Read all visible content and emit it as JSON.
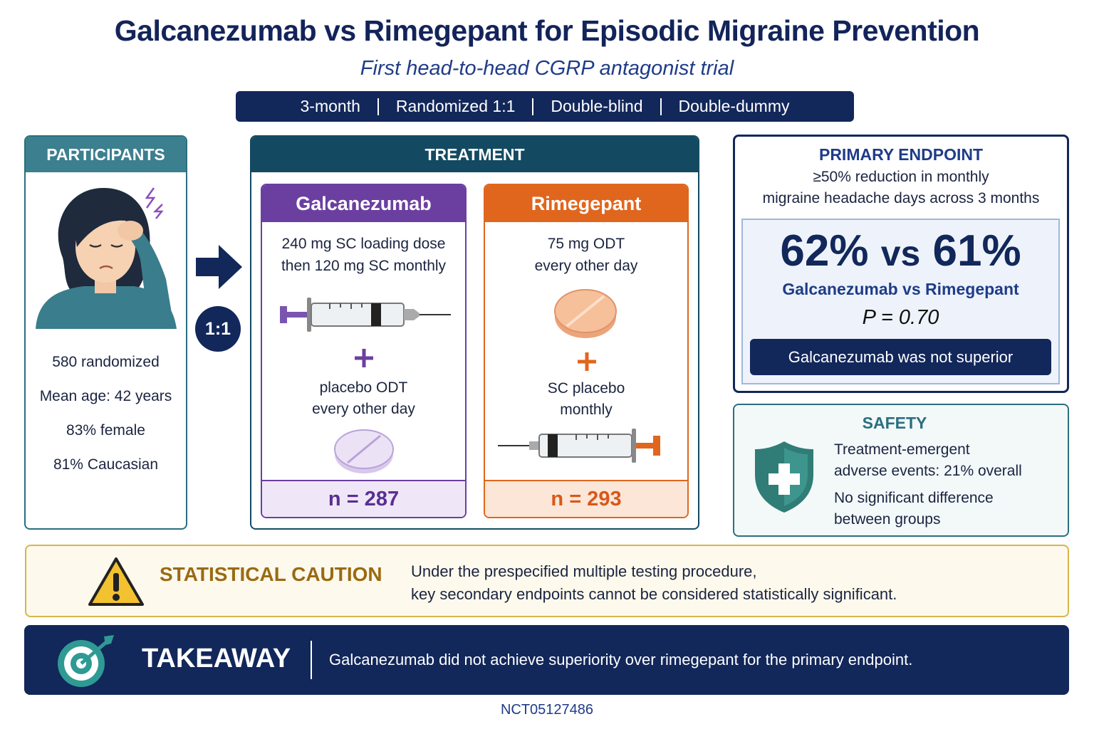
{
  "header": {
    "title": "Galcanezumab vs Rimegepant for Episodic Migraine Prevention",
    "subtitle": "First head-to-head CGRP antagonist trial",
    "design": [
      "3-month",
      "Randomized 1:1",
      "Double-blind",
      "Double-dummy"
    ]
  },
  "participants": {
    "heading": "PARTICIPANTS",
    "items": [
      "580 randomized",
      "Mean age: 42 years",
      "83% female",
      "81% Caucasian"
    ]
  },
  "ratio": "1:1",
  "treatment": {
    "heading": "TREATMENT",
    "arms": [
      {
        "name": "Galcanezumab",
        "dose": [
          "240 mg SC loading dose",
          "then 120 mg SC monthly"
        ],
        "placebo": [
          "placebo ODT",
          "every other day"
        ],
        "n": "n = 287"
      },
      {
        "name": "Rimegepant",
        "dose": [
          "75 mg ODT",
          "every other day"
        ],
        "placebo": [
          "SC placebo",
          "monthly"
        ],
        "n": "n = 293"
      }
    ]
  },
  "primary_endpoint": {
    "heading": "PRIMARY ENDPOINT",
    "description": [
      "≥50% reduction in monthly",
      "migraine headache days across 3 months"
    ],
    "result_a": "62%",
    "versus": "vs",
    "result_b": "61%",
    "comparison": "Galcanezumab vs Rimegepant",
    "p_value": "P = 0.70",
    "verdict": "Galcanezumab was not superior"
  },
  "safety": {
    "heading": "SAFETY",
    "items": [
      [
        "Treatment-emergent",
        "adverse events: 21% overall"
      ],
      [
        "No significant difference",
        "between groups"
      ]
    ]
  },
  "caution": {
    "heading": "STATISTICAL CAUTION",
    "text": [
      "Under the prespecified multiple testing procedure,",
      "key secondary endpoints cannot be considered statistically significant."
    ]
  },
  "takeaway": {
    "heading": "TAKEAWAY",
    "text": "Galcanezumab did not achieve superiority over rimegepant for the primary endpoint."
  },
  "footer": {
    "trial_id": "NCT05127486"
  }
}
